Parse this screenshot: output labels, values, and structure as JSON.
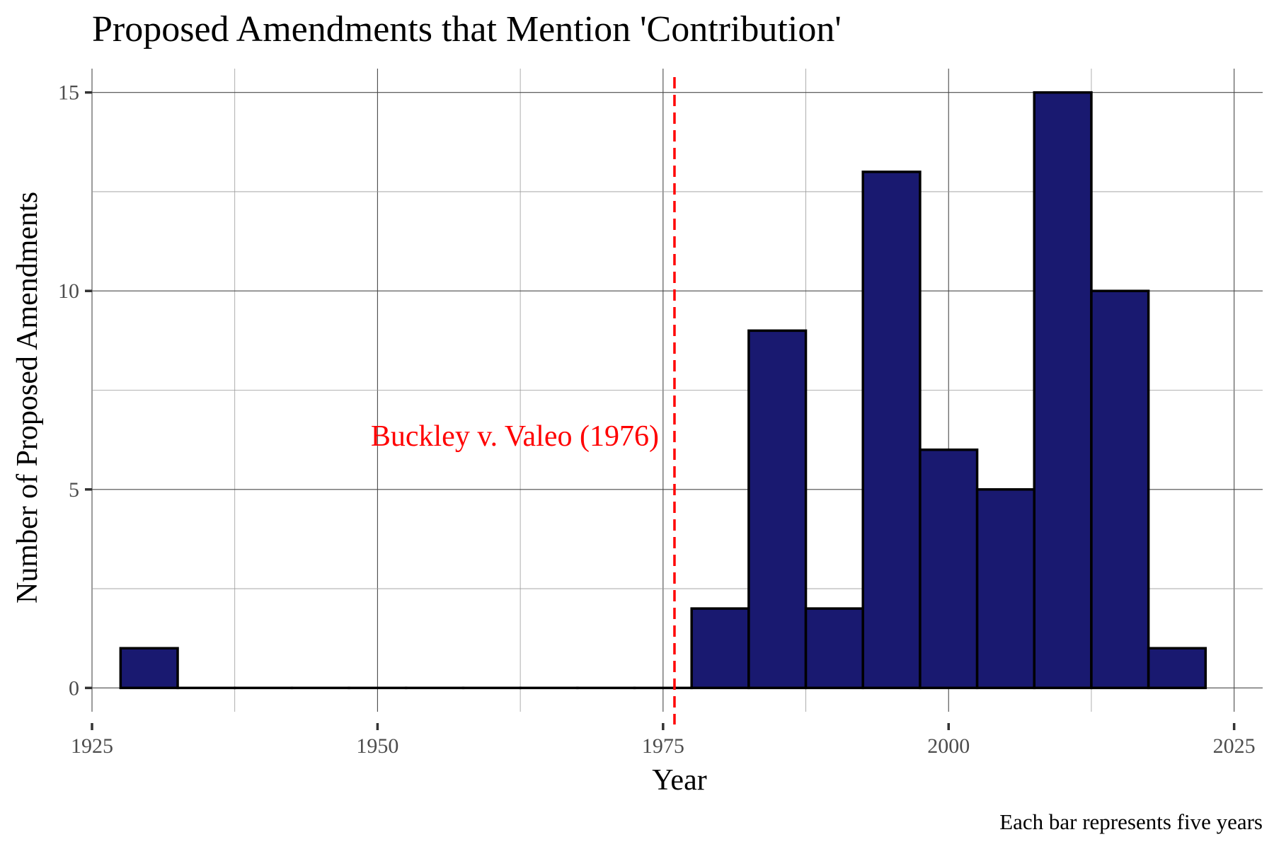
{
  "chart_data": {
    "type": "bar",
    "title": "Proposed Amendments that Mention 'Contribution'",
    "xlabel": "Year",
    "ylabel": "Number of Proposed Amendments",
    "caption": "Each bar represents five years",
    "bin_width": 5,
    "x": [
      1930,
      1935,
      1940,
      1945,
      1950,
      1955,
      1960,
      1965,
      1970,
      1975,
      1980,
      1985,
      1990,
      1995,
      2000,
      2005,
      2010,
      2015,
      2020
    ],
    "values": [
      1,
      0,
      0,
      0,
      0,
      0,
      0,
      0,
      0,
      0,
      2,
      9,
      2,
      13,
      6,
      5,
      15,
      10,
      1
    ],
    "xlim": [
      1925,
      2027.5
    ],
    "ylim": [
      -0.6,
      15.6
    ],
    "xticks": [
      1925,
      1950,
      1975,
      2000,
      2025
    ],
    "yticks": [
      0,
      5,
      10,
      15
    ],
    "grid": true,
    "legend": "none",
    "colors": {
      "fill": "#191970",
      "outline": "#000000",
      "annotation": "#ff0000"
    },
    "annotation": {
      "x": 1976,
      "label": "Buckley v. Valeo (1976)"
    }
  }
}
